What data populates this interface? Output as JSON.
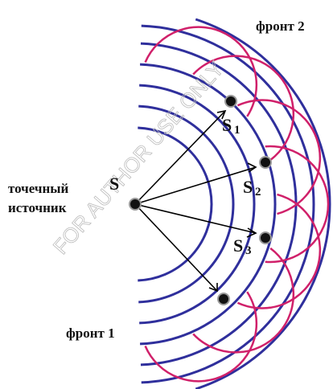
{
  "labels": {
    "front_2": "фронт 2",
    "front_1": "фронт 1",
    "source_line_1": "точечный",
    "source_line_2": "источник",
    "source": "S"
  },
  "secondary_sources": [
    {
      "letter": "S",
      "index": "1"
    },
    {
      "letter": "S",
      "index": "2"
    },
    {
      "letter": "S",
      "index": "3"
    }
  ],
  "watermark": "FOR AUTHOR USE ONLY"
}
